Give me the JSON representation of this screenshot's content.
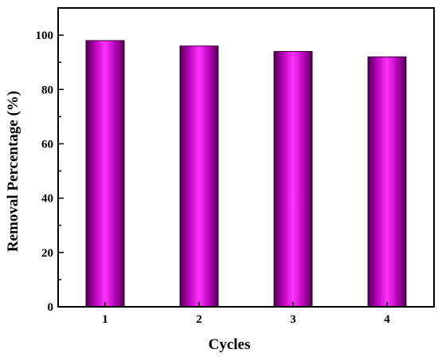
{
  "chart_data": {
    "type": "bar",
    "categories": [
      "1",
      "2",
      "3",
      "4"
    ],
    "values": [
      98,
      96,
      94,
      92
    ],
    "xlabel": "Cycles",
    "ylabel": "Removal Percentage (%)",
    "ylim": [
      0,
      110
    ],
    "yticks": [
      "0",
      "20",
      "40",
      "60",
      "80",
      "100"
    ],
    "grid": false,
    "colors": {
      "bar_center": "#ff33ff",
      "bar_mid": "#e600e6",
      "bar_edge": "#5a005a",
      "axis": "#000000"
    }
  }
}
